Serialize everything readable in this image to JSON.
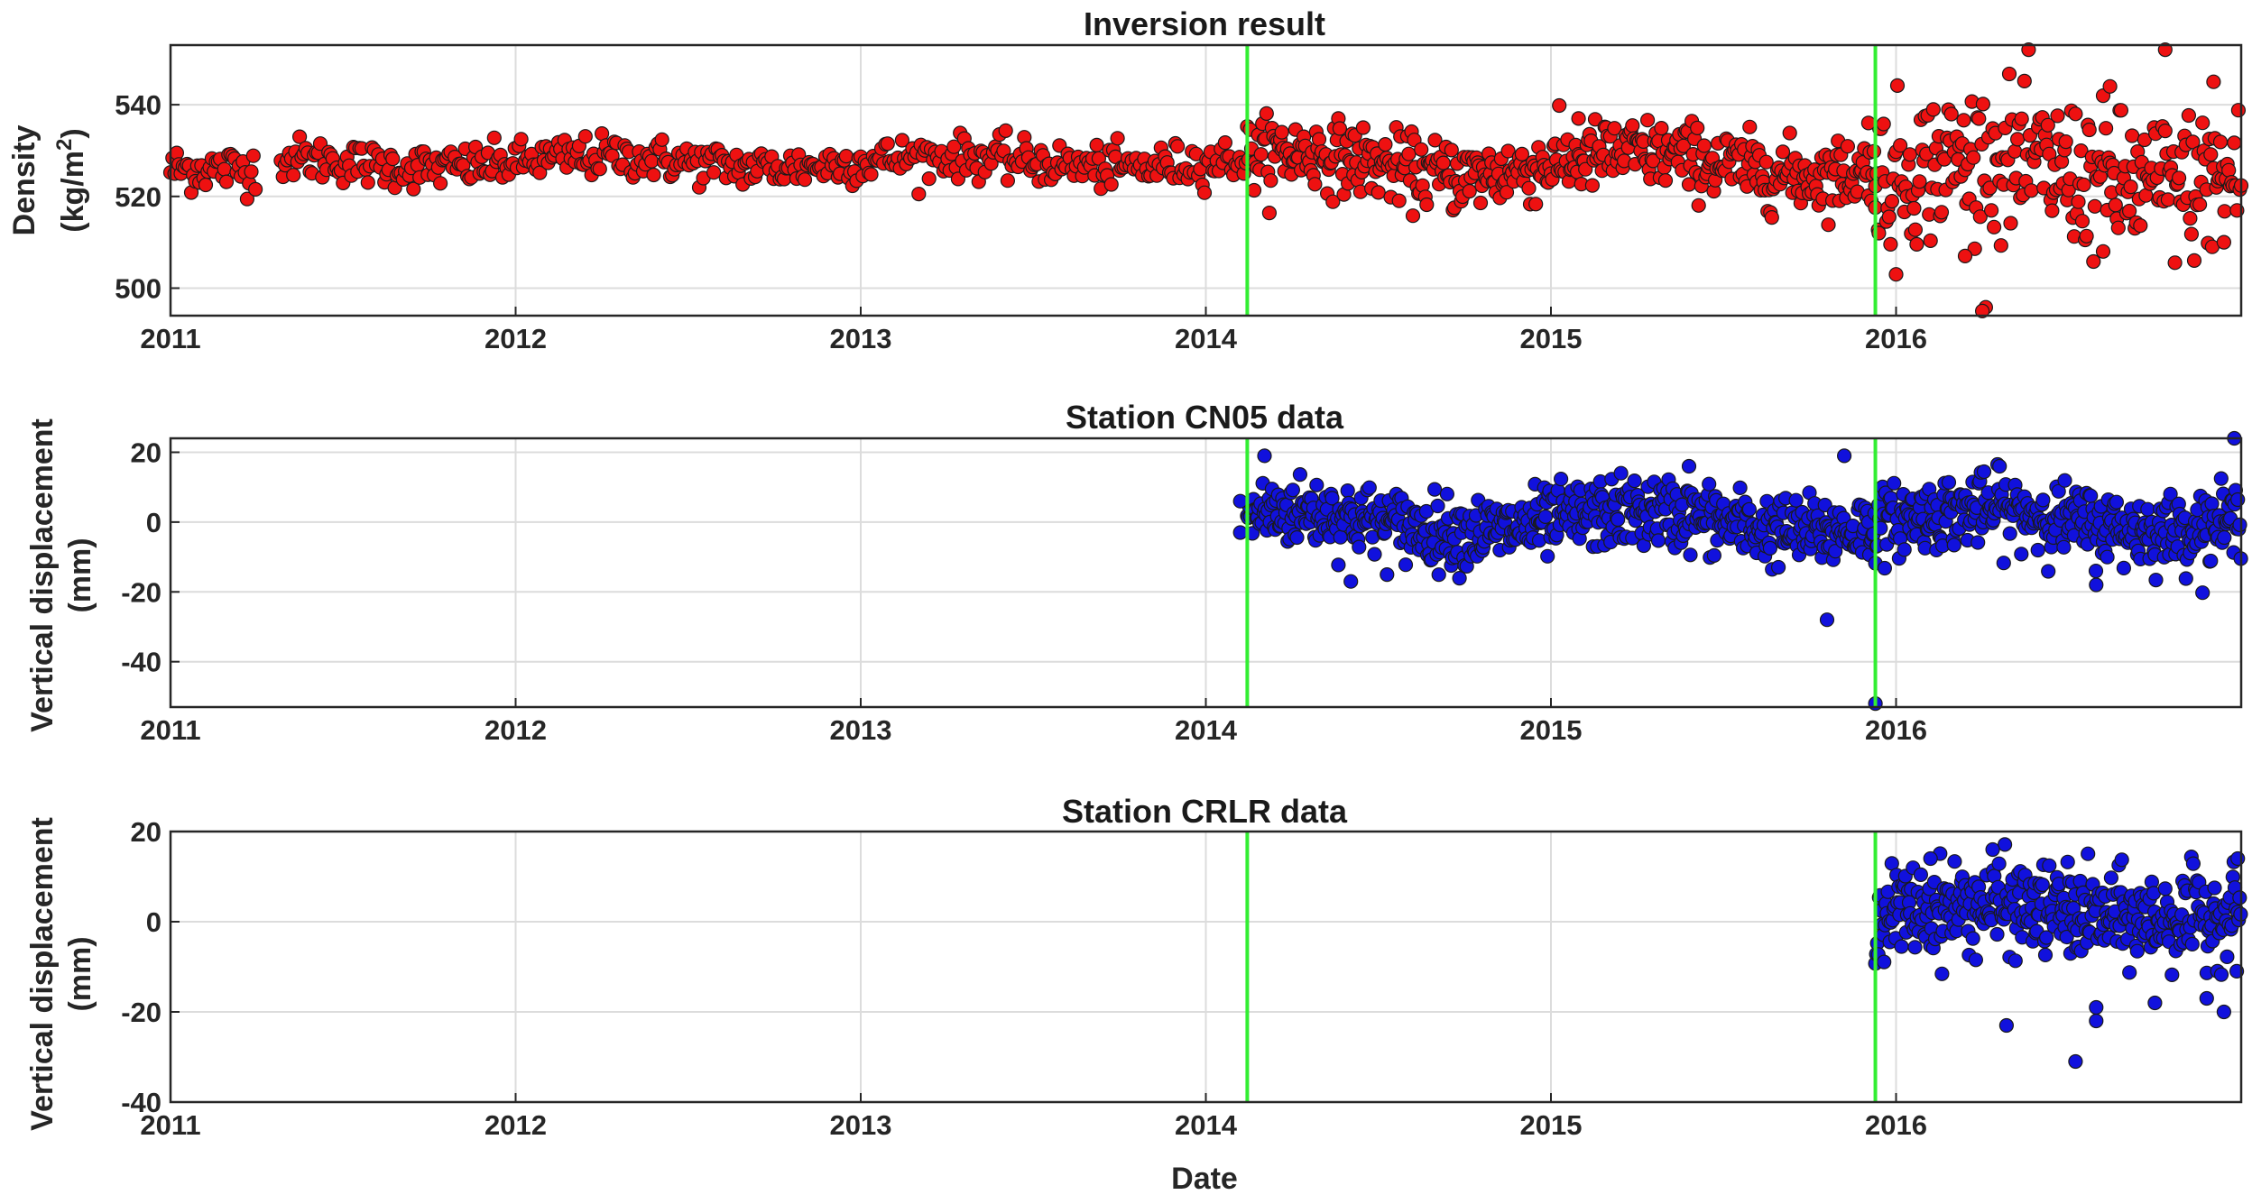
{
  "colors": {
    "red_marker": "#ee1111",
    "blue_marker": "#1111dd",
    "event_line": "#33ee33",
    "grid": "#dcdcdc",
    "axis": "#262626"
  },
  "xlabel": "Date",
  "x_ticks": [
    "2011",
    "2012",
    "2013",
    "2014",
    "2015",
    "2016"
  ],
  "event_dates": [
    2014.12,
    2015.94
  ],
  "chart_data": [
    {
      "type": "scatter",
      "title": "Inversion result",
      "ylabel": [
        "Density",
        "(kg/m",
        "2",
        ")"
      ],
      "ylim": [
        494,
        553
      ],
      "xlim": [
        2011.0,
        2017.0
      ],
      "y_ticks": [
        500,
        520,
        540
      ],
      "marker_color": "#ee1111",
      "series": [
        {
          "segments": [
            {
              "x": [
                2011.0,
                2011.25
              ],
              "center": 526,
              "spread": 2.5,
              "wave": 0,
              "step": 0.006
            },
            {
              "x": [
                2011.32,
                2014.12
              ],
              "center": 527.5,
              "spread": 2.3,
              "wave": 1.2,
              "step": 0.006
            },
            {
              "x": [
                2014.12,
                2015.94
              ],
              "center": 527,
              "spread": 3.8,
              "wave": 2.5,
              "step": 0.004
            },
            {
              "x": [
                2015.94,
                2017.0
              ],
              "center": 525,
              "spread": 8,
              "wave": 3,
              "step": 0.004
            }
          ],
          "outliers": [
            {
              "x": 2016.78,
              "y": 552
            },
            {
              "x": 2016.25,
              "y": 495
            },
            {
              "x": 2016.62,
              "y": 544
            },
            {
              "x": 2016.92,
              "y": 545
            },
            {
              "x": 2015.92,
              "y": 536
            },
            {
              "x": 2015.95,
              "y": 512
            },
            {
              "x": 2016.0,
              "y": 503
            },
            {
              "x": 2016.2,
              "y": 507
            },
            {
              "x": 2016.6,
              "y": 508
            },
            {
              "x": 2016.95,
              "y": 510
            },
            {
              "x": 2015.08,
              "y": 537
            },
            {
              "x": 2014.22,
              "y": 534
            }
          ]
        }
      ]
    },
    {
      "type": "scatter",
      "title": "Station CN05 data",
      "ylabel": [
        "Vertical displacement",
        "(mm)"
      ],
      "ylim": [
        -53,
        24
      ],
      "xlim": [
        2011.0,
        2017.0
      ],
      "y_ticks": [
        -40,
        -20,
        0,
        20
      ],
      "marker_color": "#1111dd",
      "series": [
        {
          "segments": [
            {
              "x": [
                2014.12,
                2015.94
              ],
              "center": 0,
              "spread": 5,
              "wave": 3,
              "step": 0.003
            },
            {
              "x": [
                2015.94,
                2017.0
              ],
              "center": 0.5,
              "spread": 5,
              "wave": 3,
              "step": 0.003
            }
          ],
          "outliers": [
            {
              "x": 2015.94,
              "y": -52
            },
            {
              "x": 2015.8,
              "y": -28
            },
            {
              "x": 2016.98,
              "y": 24
            },
            {
              "x": 2014.17,
              "y": 19
            },
            {
              "x": 2015.85,
              "y": 19
            },
            {
              "x": 2016.58,
              "y": -18
            },
            {
              "x": 2014.42,
              "y": -17
            },
            {
              "x": 2014.1,
              "y": 6
            },
            {
              "x": 2014.1,
              "y": -3
            },
            {
              "x": 2015.4,
              "y": 16
            },
            {
              "x": 2016.3,
              "y": 16
            }
          ]
        }
      ]
    },
    {
      "type": "scatter",
      "title": "Station CRLR data",
      "ylabel": [
        "Vertical displacement",
        "(mm)"
      ],
      "ylim": [
        -40,
        20
      ],
      "xlim": [
        2011.0,
        2017.0
      ],
      "y_ticks": [
        -40,
        -20,
        0,
        20
      ],
      "marker_color": "#1111dd",
      "series": [
        {
          "segments": [
            {
              "x": [
                2015.94,
                2017.0
              ],
              "center": 2,
              "spread": 5,
              "wave": 1.5,
              "step": 0.0028
            }
          ],
          "outliers": [
            {
              "x": 2016.52,
              "y": -31
            },
            {
              "x": 2016.32,
              "y": -23
            },
            {
              "x": 2016.58,
              "y": -22
            },
            {
              "x": 2016.58,
              "y": -19
            },
            {
              "x": 2016.95,
              "y": -20
            },
            {
              "x": 2016.99,
              "y": 14
            },
            {
              "x": 2016.28,
              "y": 16
            },
            {
              "x": 2016.1,
              "y": 14
            },
            {
              "x": 2016.9,
              "y": -17
            },
            {
              "x": 2016.75,
              "y": -18
            }
          ]
        }
      ]
    }
  ]
}
